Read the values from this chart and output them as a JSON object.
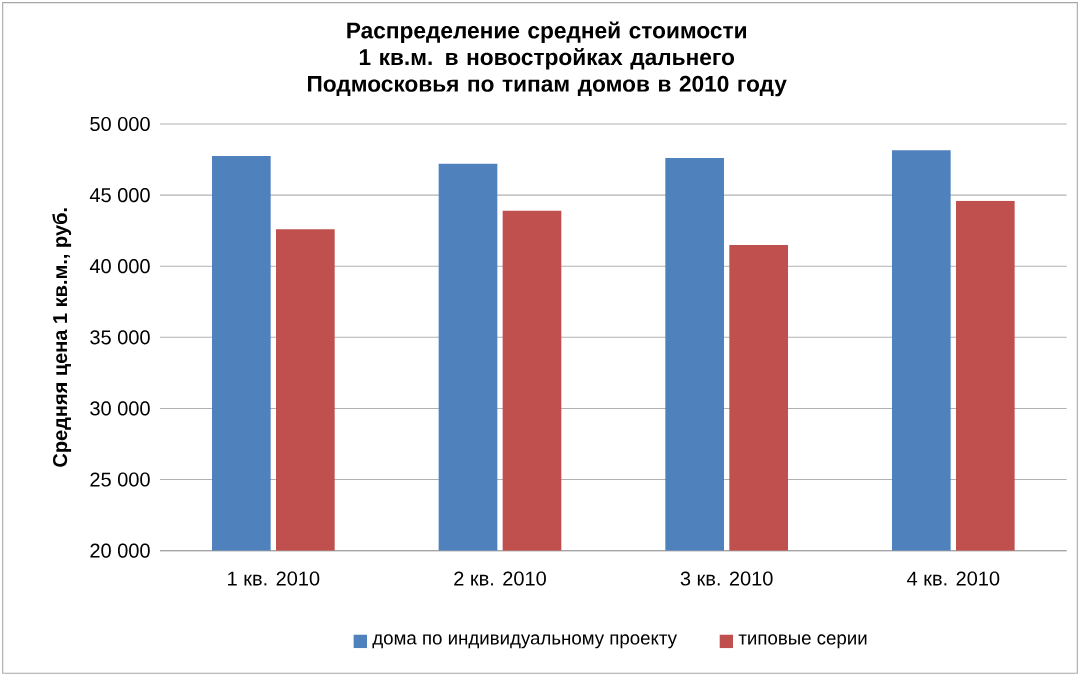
{
  "chart_data": {
    "type": "bar",
    "title": "Распределение средней стоимости 1 кв.м. в новостройках дальнего Подмосковья по типам домов в 2010 году",
    "ylabel": "Средняя цена 1 кв.м., руб.",
    "categories": [
      "1 кв. 2010",
      "2 кв. 2010",
      "3 кв. 2010",
      "4 кв. 2010"
    ],
    "series": [
      {
        "name": "дома по индивидуальному проекту",
        "color": "#4f81bd",
        "values": [
          47750,
          47200,
          47600,
          48150
        ]
      },
      {
        "name": "типовые серии",
        "color": "#c0504d",
        "values": [
          42600,
          43900,
          41500,
          44600
        ]
      }
    ],
    "ylim": [
      20000,
      50000
    ],
    "yticks": [
      {
        "value": 20000,
        "label": "20 000"
      },
      {
        "value": 25000,
        "label": "25 000"
      },
      {
        "value": 30000,
        "label": "30 000"
      },
      {
        "value": 35000,
        "label": "35 000"
      },
      {
        "value": 40000,
        "label": "40 000"
      },
      {
        "value": 45000,
        "label": "45 000"
      },
      {
        "value": 50000,
        "label": "50 000"
      }
    ],
    "grid": "y",
    "legend": "bottom"
  }
}
